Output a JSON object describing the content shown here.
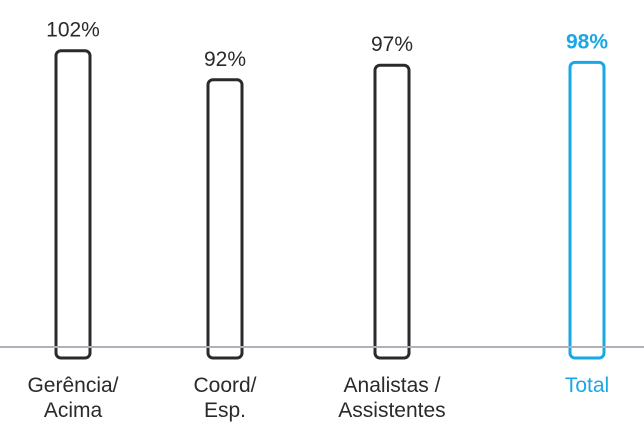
{
  "chart_data": {
    "type": "bar",
    "categories": [
      [
        "Gerência/",
        "Acima"
      ],
      [
        "Coord/",
        "Esp."
      ],
      [
        "Analistas /",
        "Assistentes"
      ],
      [
        "Total"
      ]
    ],
    "values": [
      102,
      92,
      97,
      98
    ],
    "value_labels": [
      "102%",
      "92%",
      "97%",
      "98%"
    ],
    "highlight_index": 3,
    "title": "",
    "xlabel": "",
    "ylabel": "",
    "ylim": [
      0,
      105
    ],
    "grid": false,
    "legend": "none",
    "colors": {
      "bar_stroke": "#2a2a2a",
      "highlight": "#1aa7e6",
      "text": "#2a2a2a",
      "axis": "#b0b0b8"
    }
  }
}
